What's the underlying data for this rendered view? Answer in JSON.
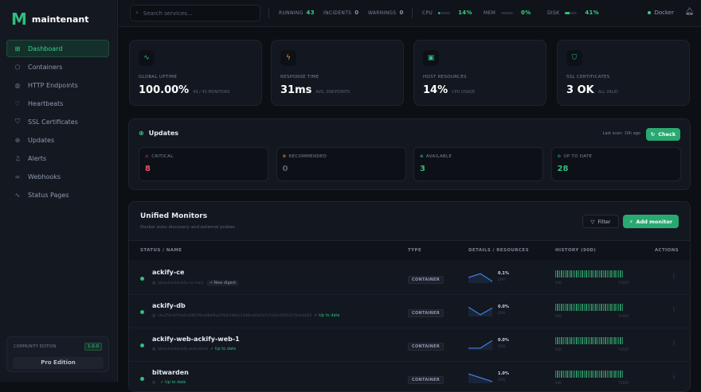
{
  "app": {
    "logo_mark": "M",
    "name": "maintenant"
  },
  "sidebar": {
    "items": [
      {
        "label": "Dashboard",
        "icon": "grid-icon",
        "active": true
      },
      {
        "label": "Containers",
        "icon": "box-icon"
      },
      {
        "label": "HTTP Endpoints",
        "icon": "globe-icon"
      },
      {
        "label": "Heartbeats",
        "icon": "heart-icon"
      },
      {
        "label": "SSL Certificates",
        "icon": "shield-icon"
      },
      {
        "label": "Updates",
        "icon": "arrow-up-circle-icon"
      },
      {
        "label": "Alerts",
        "icon": "bell-icon"
      },
      {
        "label": "Webhooks",
        "icon": "link-icon"
      },
      {
        "label": "Status Pages",
        "icon": "activity-icon"
      }
    ],
    "edition": {
      "label": "COMMUNITY EDITION",
      "version": "1.0.0",
      "pro_button": "Pro Edition"
    }
  },
  "topbar": {
    "search_placeholder": "Search services...",
    "running_label": "RUNNING",
    "running": "43",
    "incidents_label": "INCIDENTS",
    "incidents": "0",
    "warnings_label": "WARNINGS",
    "warnings": "0",
    "cpu_label": "CPU",
    "cpu": "14%",
    "cpu_pct": 14,
    "mem_label": "MEM",
    "mem": "0%",
    "mem_pct": 0,
    "disk_label": "DISK",
    "disk": "41%",
    "disk_pct": 41,
    "runtime": "Docker"
  },
  "stats": [
    {
      "title": "GLOBAL UPTIME",
      "value": "100.00%",
      "sub": "43 / 43 MONITORS",
      "icon": "activity-icon",
      "color": "#2dbf7e"
    },
    {
      "title": "RESPONSE TIME",
      "value": "31ms",
      "sub": "AVG. ENDPOINTS",
      "icon": "zap-icon",
      "color": "#e8952b"
    },
    {
      "title": "HOST RESOURCES",
      "value": "14%",
      "sub": "CPU USAGE",
      "icon": "cpu-icon",
      "color": "#2dbf7e"
    },
    {
      "title": "SSL CERTIFICATES",
      "value": "3 OK",
      "sub": "ALL VALID",
      "icon": "shield-icon",
      "color": "#2dbf7e"
    }
  ],
  "updates": {
    "title": "Updates",
    "last_scan": "Last scan: 10h ago",
    "check_button": "Check",
    "boxes": [
      {
        "label": "CRITICAL",
        "value": "8",
        "color": "#f0506e",
        "icon": "alert-triangle-icon"
      },
      {
        "label": "RECOMMENDED",
        "value": "0",
        "color": "#e8952b",
        "value_color": "#5a6274",
        "icon": "alert-circle-icon"
      },
      {
        "label": "AVAILABLE",
        "value": "3",
        "color": "#2dbf7e",
        "icon": "arrow-up-circle-icon"
      },
      {
        "label": "UP TO DATE",
        "value": "28",
        "color": "#2dbf7e",
        "icon": "check-circle-icon"
      }
    ]
  },
  "monitors": {
    "title": "Unified Monitors",
    "subtitle": "Docker auto-discovery and external probes",
    "filter_button": "Filter",
    "add_button": "Add monitor",
    "columns": [
      "STATUS / NAME",
      "TYPE",
      "DETAILS / RESOURCES",
      "HISTORY (90D)",
      "ACTIONS"
    ],
    "history_start": "90D",
    "history_end": "TODAY",
    "rows": [
      {
        "name": "ackify-ce",
        "image": "btouchard/ackify-ce:main",
        "badge": "New digest",
        "badge_kind": "digest",
        "type": "CONTAINER",
        "cpu": "0.1%",
        "cpu_label": "CPU",
        "spark": [
          0.5,
          0.9,
          0.1
        ]
      },
      {
        "name": "ackify-db",
        "image": "sha256:b97fe41a066781e884f8a23fd3cfd04c3348ce02d7a7c5cb2c0645317b4eb663",
        "badge": "Up to date",
        "badge_kind": "ok",
        "type": "CONTAINER",
        "cpu": "0.0%",
        "cpu_label": "CPU",
        "spark": [
          0.9,
          0.1,
          0.8
        ]
      },
      {
        "name": "ackify-web-ackify-web-1",
        "image": "btouchard/ackify-web:latest",
        "badge": "Up to date",
        "badge_kind": "ok",
        "type": "CONTAINER",
        "cpu": "0.0%",
        "cpu_label": "CPU",
        "spark": [
          0.1,
          0.1,
          0.9
        ]
      },
      {
        "name": "bitwarden",
        "image": "",
        "badge": "Up to date",
        "badge_kind": "ok",
        "type": "CONTAINER",
        "cpu": "1.0%",
        "cpu_label": "CPU",
        "spark": [
          0.9,
          0.5,
          0.1
        ]
      }
    ]
  }
}
